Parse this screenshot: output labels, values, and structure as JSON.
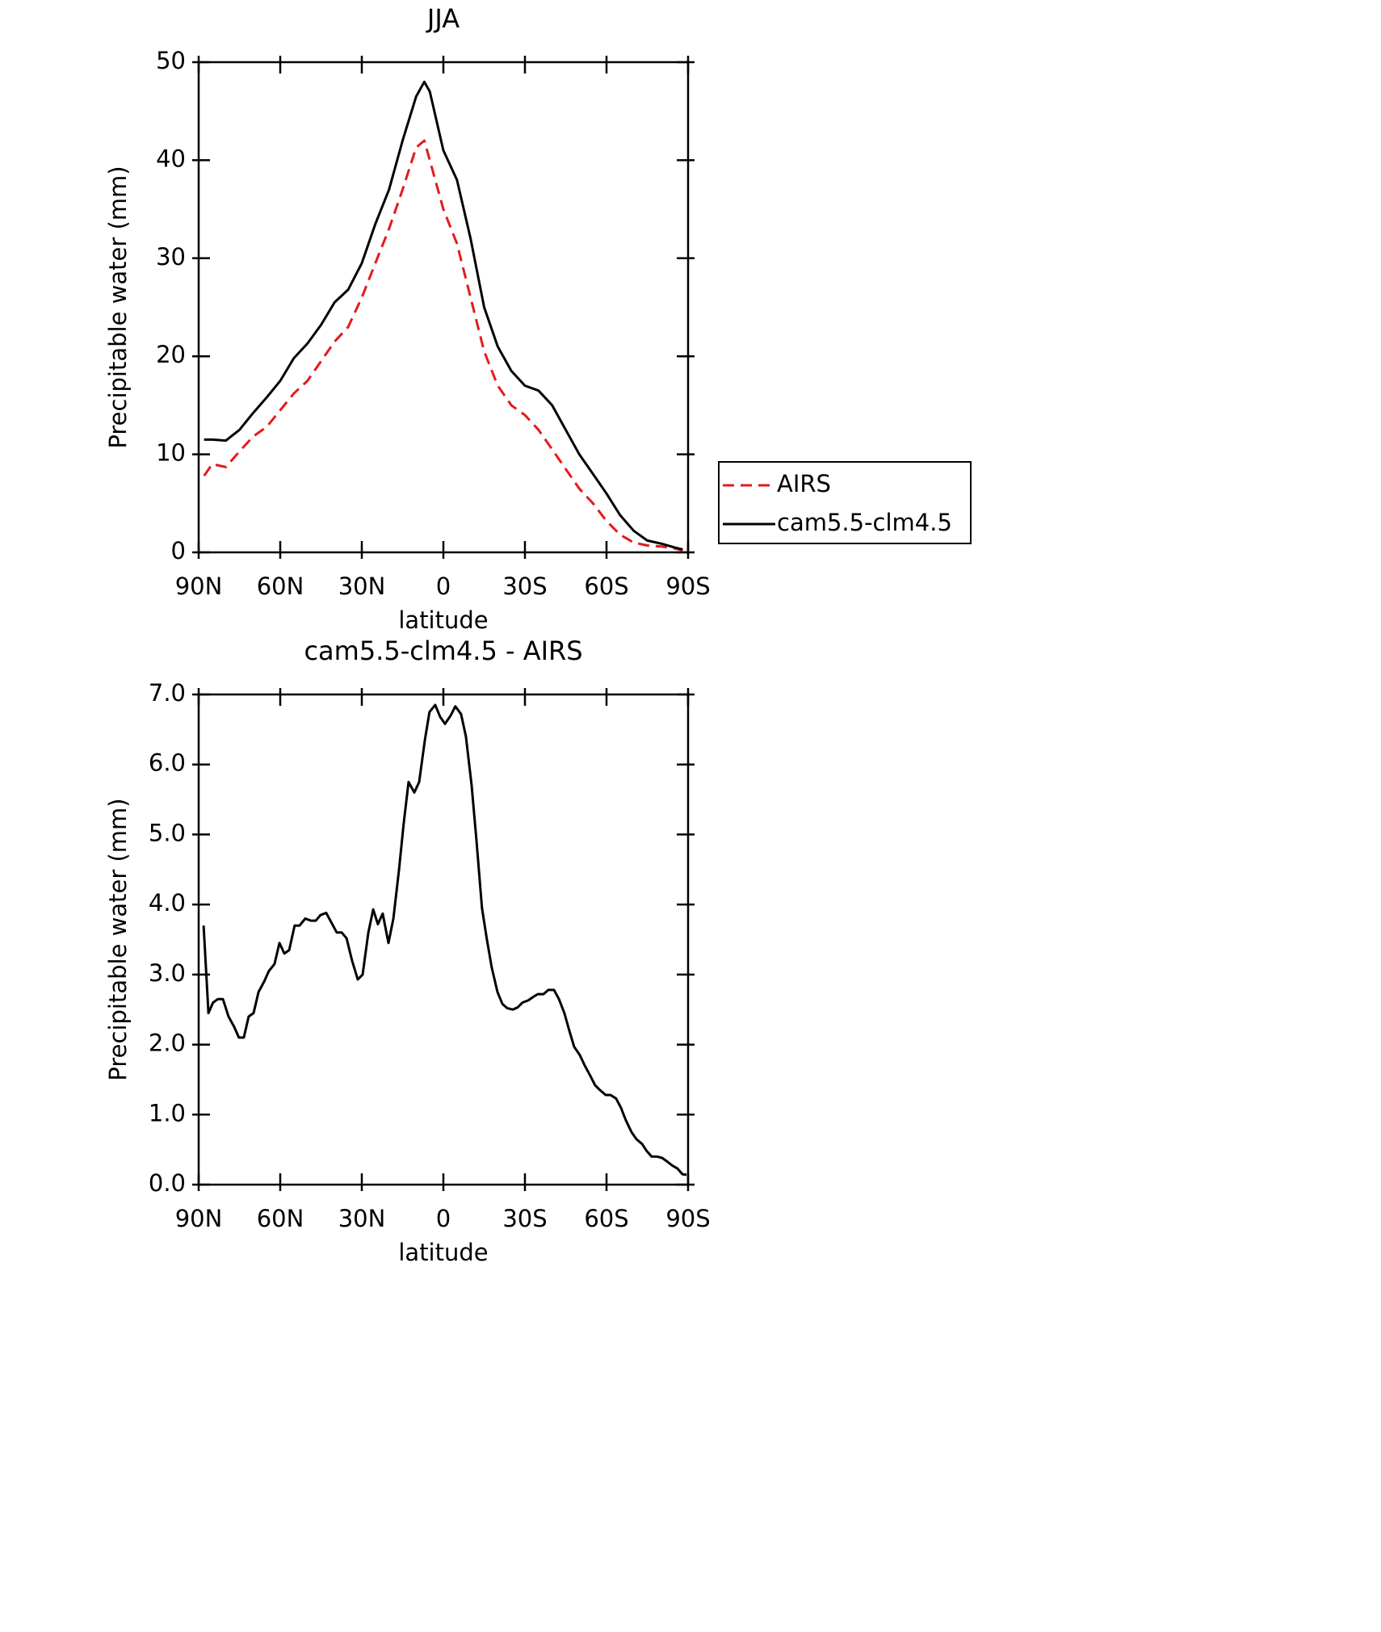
{
  "chart_data": [
    {
      "type": "line",
      "title": "JJA",
      "xlabel": "latitude",
      "ylabel": "Precipitable water (mm)",
      "xlim": [
        90,
        -90
      ],
      "xticks": [
        {
          "value": 90,
          "label": "90N"
        },
        {
          "value": 60,
          "label": "60N"
        },
        {
          "value": 30,
          "label": "30N"
        },
        0,
        {
          "value": -30,
          "label": "30S"
        },
        {
          "value": -60,
          "label": "60S"
        },
        {
          "value": -90,
          "label": "90S"
        }
      ],
      "ylim": [
        0,
        50
      ],
      "yticks": [
        0,
        10,
        20,
        30,
        40,
        50
      ],
      "legend": "right",
      "x": [
        88,
        85,
        80,
        75,
        70,
        65,
        60,
        55,
        50,
        45,
        40,
        35,
        30,
        25,
        20,
        15,
        10,
        7,
        5,
        0,
        -5,
        -10,
        -15,
        -20,
        -25,
        -30,
        -35,
        -40,
        -45,
        -50,
        -55,
        -60,
        -65,
        -70,
        -75,
        -80,
        -85,
        -88
      ],
      "series": [
        {
          "name": "AIRS",
          "color": "#e41a1c",
          "linestyle": "dashed",
          "values": [
            7.8,
            9,
            8.7,
            10.3,
            11.8,
            12.8,
            14.5,
            16.2,
            17.5,
            19.5,
            21.5,
            23,
            26,
            29.5,
            33,
            37,
            41.3,
            42,
            40,
            35,
            31.5,
            26,
            20.5,
            17,
            15,
            14,
            12.5,
            10.5,
            8.5,
            6.5,
            5,
            3.2,
            1.8,
            1,
            0.7,
            0.6,
            0.4,
            0.2
          ]
        },
        {
          "name": "cam5.5-clm4.5",
          "color": "#000000",
          "linestyle": "solid",
          "values": [
            11.5,
            11.5,
            11.4,
            12.5,
            14.2,
            15.8,
            17.5,
            19.8,
            21.3,
            23.2,
            25.5,
            26.8,
            29.5,
            33.5,
            37,
            42,
            46.5,
            48,
            47,
            41,
            38,
            32,
            25,
            21,
            18.5,
            17,
            16.5,
            15,
            12.5,
            10,
            8,
            6,
            3.8,
            2.2,
            1.2,
            0.9,
            0.5,
            0.3
          ]
        }
      ]
    },
    {
      "type": "line",
      "title": "cam5.5-clm4.5 - AIRS",
      "xlabel": "latitude",
      "ylabel": "Precipitable water (mm)",
      "xlim": [
        90,
        -90
      ],
      "xticks": [
        {
          "value": 90,
          "label": "90N"
        },
        {
          "value": 60,
          "label": "60N"
        },
        {
          "value": 30,
          "label": "30N"
        },
        0,
        {
          "value": -30,
          "label": "30S"
        },
        {
          "value": -60,
          "label": "60S"
        },
        {
          "value": -90,
          "label": "90S"
        }
      ],
      "ylim": [
        0,
        7
      ],
      "yticks": [
        {
          "value": 0,
          "label": "0.0"
        },
        {
          "value": 1,
          "label": "1.0"
        },
        {
          "value": 2,
          "label": "2.0"
        },
        {
          "value": 3,
          "label": "3.0"
        },
        {
          "value": 4,
          "label": "4.0"
        },
        {
          "value": 5,
          "label": "5.0"
        },
        {
          "value": 6,
          "label": "6.0"
        },
        {
          "value": 7,
          "label": "7.0"
        }
      ],
      "x": [
        88.2,
        86.4,
        84.7,
        82.9,
        81.1,
        79,
        76.9,
        75.2,
        73.4,
        71.6,
        69.8,
        68,
        65.9,
        64.2,
        62.1,
        60.3,
        58.5,
        56.7,
        54.7,
        52.9,
        50.8,
        48.7,
        46.9,
        45.2,
        43.1,
        41.3,
        39.2,
        37.4,
        35.6,
        33.6,
        31.5,
        29.7,
        27.6,
        25.8,
        24.1,
        22.3,
        20.2,
        18.4,
        16.3,
        14.6,
        12.8,
        10.7,
        8.9,
        6.8,
        5.1,
        3,
        1.2,
        -0.6,
        -2.7,
        -4.4,
        -6.5,
        -8.3,
        -10.4,
        -12.2,
        -14.2,
        -16,
        -17.8,
        -19.9,
        -21.7,
        -23.5,
        -25.5,
        -27.3,
        -29.1,
        -31.2,
        -33,
        -34.7,
        -36.8,
        -38.6,
        -40.7,
        -42.5,
        -44.5,
        -46.3,
        -48.1,
        -50.2,
        -52,
        -54.1,
        -55.8,
        -57.6,
        -59.7,
        -61.5,
        -63.5,
        -65.3,
        -67.1,
        -69.2,
        -71,
        -73.1,
        -74.8,
        -76.6,
        -78.7,
        -80.5,
        -82.3,
        -84.3,
        -86.1,
        -87.9,
        -89.4
      ],
      "series": [
        {
          "color": "#000000",
          "linestyle": "solid",
          "values": [
            3.7,
            2.45,
            2.6,
            2.65,
            2.65,
            2.4,
            2.25,
            2.1,
            2.1,
            2.4,
            2.45,
            2.75,
            2.9,
            3.05,
            3.15,
            3.45,
            3.3,
            3.35,
            3.7,
            3.7,
            3.8,
            3.77,
            3.77,
            3.85,
            3.88,
            3.75,
            3.6,
            3.6,
            3.52,
            3.2,
            2.93,
            3,
            3.6,
            3.93,
            3.72,
            3.87,
            3.45,
            3.8,
            4.5,
            5.15,
            5.75,
            5.6,
            5.75,
            6.35,
            6.75,
            6.85,
            6.68,
            6.58,
            6.7,
            6.83,
            6.72,
            6.4,
            5.7,
            4.9,
            3.95,
            3.5,
            3.1,
            2.75,
            2.58,
            2.52,
            2.5,
            2.53,
            2.6,
            2.63,
            2.68,
            2.72,
            2.72,
            2.78,
            2.78,
            2.65,
            2.45,
            2.2,
            1.97,
            1.85,
            1.7,
            1.55,
            1.42,
            1.35,
            1.28,
            1.28,
            1.23,
            1.1,
            0.92,
            0.75,
            0.65,
            0.58,
            0.48,
            0.4,
            0.4,
            0.38,
            0.33,
            0.27,
            0.23,
            0.15,
            0.14
          ]
        }
      ]
    }
  ]
}
